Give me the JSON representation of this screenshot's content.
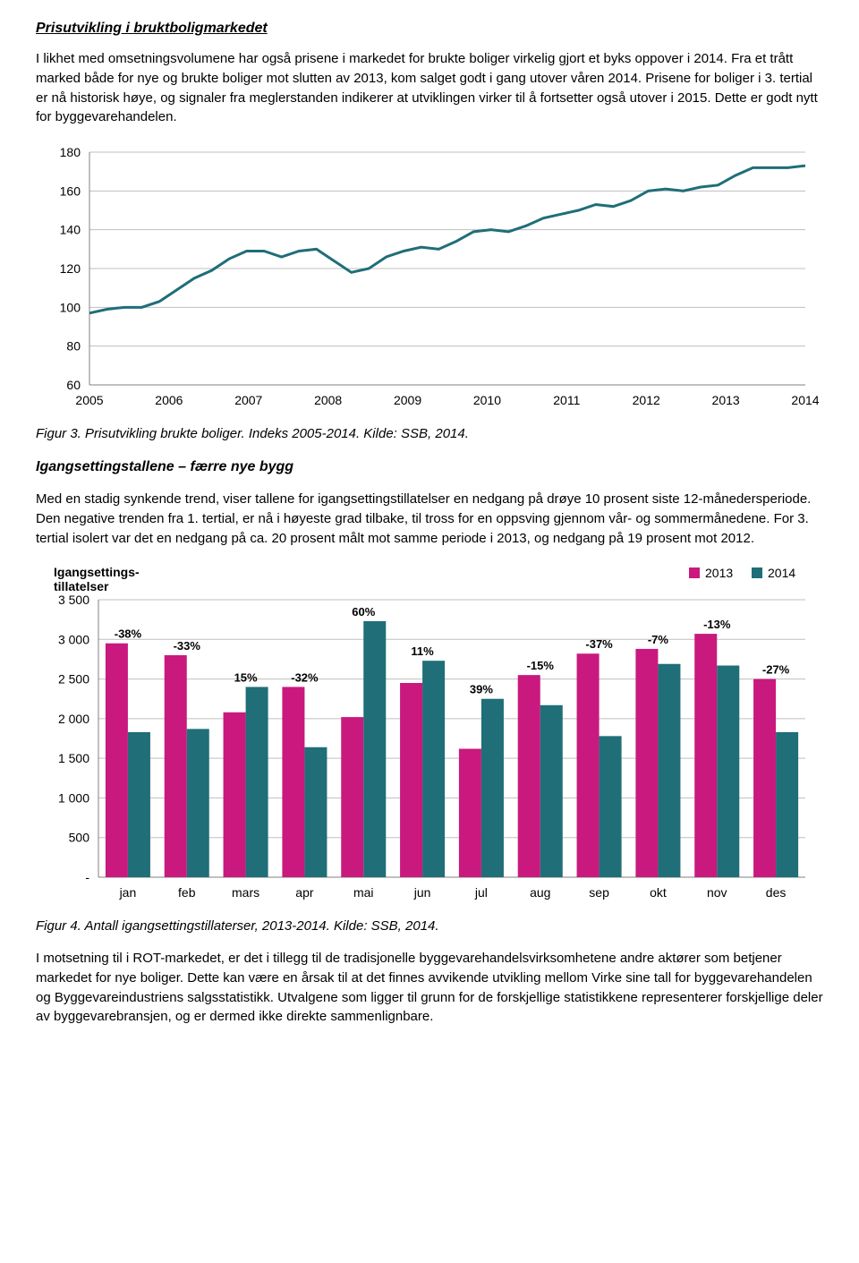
{
  "heading1": "Prisutvikling i bruktboligmarkedet",
  "para1": "I likhet med omsetningsvolumene har også prisene i markedet for brukte boliger virkelig gjort et byks oppover i 2014. Fra et trått marked både for nye og brukte boliger mot slutten av 2013, kom salget godt i gang utover våren 2014. Prisene for boliger i 3. tertial er nå historisk høye, og signaler fra meglerstanden indikerer at utviklingen virker til å fortsetter også utover i 2015. Dette er godt nytt for byggevarehandelen.",
  "chart1": {
    "type": "line",
    "ylim": [
      60,
      180
    ],
    "ytick_step": 20,
    "x_years": [
      2005,
      2006,
      2007,
      2008,
      2009,
      2010,
      2011,
      2012,
      2013,
      2014
    ],
    "values_quarterly": [
      97,
      99,
      100,
      100,
      103,
      109,
      115,
      119,
      125,
      129,
      129,
      126,
      129,
      130,
      124,
      118,
      120,
      126,
      129,
      131,
      130,
      134,
      139,
      140,
      139,
      142,
      146,
      148,
      150,
      153,
      152,
      155,
      160,
      161,
      160,
      162,
      163,
      168,
      172,
      172,
      172,
      173
    ],
    "line_color": "#1f6e78",
    "grid_color": "#d9d9d9",
    "background_color": "#ffffff",
    "axis_fontsize": 14
  },
  "caption1": "Figur 3. Prisutvikling brukte boliger. Indeks 2005-2014. Kilde: SSB, 2014.",
  "heading2": "Igangsettingstallene – færre nye bygg",
  "para2": "Med en stadig synkende trend, viser tallene for igangsettingstillatelser en nedgang på drøye 10 prosent siste 12-månedersperiode. Den negative trenden fra 1. tertial, er nå i høyeste grad tilbake, til tross for en oppsving gjennom vår- og sommermånedene. For 3. tertial isolert var det en nedgang på ca. 20 prosent målt mot samme periode i 2013, og nedgang på 19 prosent mot 2012.",
  "chart2": {
    "type": "bar",
    "title": "Igangsettings-\ntillatelser",
    "legend": {
      "a": "2013",
      "b": "2014"
    },
    "categories": [
      "jan",
      "feb",
      "mars",
      "apr",
      "mai",
      "jun",
      "jul",
      "aug",
      "sep",
      "okt",
      "nov",
      "des"
    ],
    "series_a": [
      2950,
      2800,
      2080,
      2400,
      2020,
      2450,
      1620,
      2550,
      2820,
      2880,
      3070,
      2500
    ],
    "series_b": [
      1830,
      1870,
      2400,
      1640,
      3230,
      2730,
      2250,
      2170,
      1780,
      2690,
      2670,
      1830
    ],
    "pct_labels": [
      "-38%",
      "-33%",
      "15%",
      "-32%",
      "60%",
      "11%",
      "39%",
      "-15%",
      "-37%",
      "-7%",
      "-13%",
      "-27%"
    ],
    "color_a": "#c9197e",
    "color_b": "#1f6e78",
    "ylim": [
      0,
      3500
    ],
    "ytick_step": 500,
    "grid_color": "#d9d9d9",
    "axis_fontsize": 14
  },
  "caption2": "Figur 4. Antall igangsettingstillaterser, 2013-2014. Kilde: SSB, 2014.",
  "para3": "I motsetning til i ROT-markedet, er det i tillegg til de tradisjonelle byggevarehandelsvirksomhetene andre aktører som betjener markedet for nye boliger. Dette kan være en årsak til at det finnes avvikende utvikling mellom Virke sine tall for byggevarehandelen og Byggevareindustriens salgsstatistikk. Utvalgene som ligger til grunn for de forskjellige statistikkene representerer forskjellige deler av byggevarebransjen, og er dermed ikke direkte sammenlignbare."
}
